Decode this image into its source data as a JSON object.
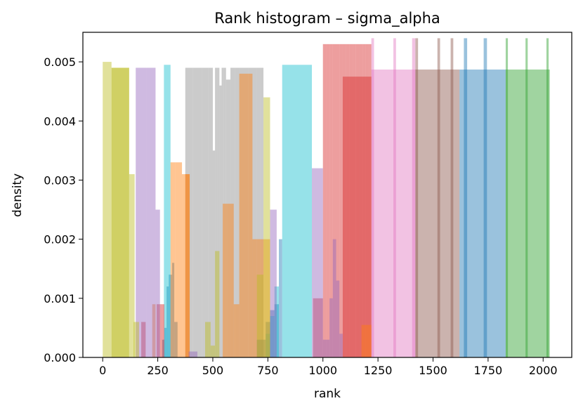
{
  "chart_data": {
    "type": "bar",
    "subtype": "overlaid-histograms",
    "title": "Rank histogram – sigma_alpha",
    "xlabel": "rank",
    "ylabel": "density",
    "xlim": [
      -90,
      2130
    ],
    "ylim": [
      0,
      0.0055
    ],
    "x_ticks": [
      0,
      250,
      500,
      750,
      1000,
      1250,
      1500,
      1750,
      2000
    ],
    "y_ticks": [
      0.0,
      0.001,
      0.002,
      0.003,
      0.004,
      0.005
    ],
    "y_tick_labels": [
      "0.000",
      "0.001",
      "0.002",
      "0.003",
      "0.004",
      "0.005"
    ],
    "grid": false,
    "legend": "none",
    "bar_alpha": 0.45,
    "series": [
      {
        "color": "#8c8c8c",
        "edges": [
          375,
          410,
          450,
          480,
          500,
          510,
          520,
          530,
          540,
          550,
          560,
          580,
          600,
          620,
          660,
          700,
          715,
          730
        ],
        "values": [
          0.0049,
          0.0049,
          0.0049,
          0.0049,
          0.0035,
          0.0049,
          0.0049,
          0.0046,
          0.0049,
          0.0049,
          0.0047,
          0.0049,
          0.0049,
          0.0049,
          0.0049,
          0.0049,
          0.0049
        ]
      },
      {
        "color": "#1f77b4",
        "edges": [
          270,
          280,
          290,
          300,
          315,
          325,
          340
        ],
        "values": [
          0.0003,
          0.0005,
          0.0012,
          0.0014,
          0.0016,
          0.0006
        ]
      },
      {
        "color": "#1f77b4",
        "edges": [
          700,
          720,
          740,
          760,
          780,
          800,
          815
        ],
        "values": [
          0.0003,
          0.0003,
          0.0006,
          0.0008,
          0.0009,
          0.002
        ]
      },
      {
        "color": "#1f77b4",
        "edges": [
          1620,
          1830
        ],
        "values": [
          0.00487
        ]
      },
      {
        "color": "#1f77b4",
        "edges": [
          1640,
          1655,
          1730,
          1745
        ],
        "values": [
          0.0054,
          0.0,
          0.0054
        ]
      },
      {
        "color": "#e377c2",
        "edges": [
          1220,
          1420
        ],
        "values": [
          0.00487
        ]
      },
      {
        "color": "#e377c2",
        "edges": [
          1220,
          1232,
          1320,
          1332,
          1405,
          1420
        ],
        "values": [
          0.0054,
          0.0,
          0.0054,
          0.0,
          0.0054
        ]
      },
      {
        "color": "#8c564b",
        "edges": [
          1420,
          1620
        ],
        "values": [
          0.00487
        ]
      },
      {
        "color": "#8c564b",
        "edges": [
          1420,
          1432,
          1520,
          1532,
          1580,
          1592
        ],
        "values": [
          0.0054,
          0.0,
          0.0054,
          0.0,
          0.0054
        ]
      },
      {
        "color": "#2ca02c",
        "edges": [
          1830,
          2030
        ],
        "values": [
          0.00487
        ]
      },
      {
        "color": "#2ca02c",
        "edges": [
          1830,
          1840,
          1920,
          1930,
          2015,
          2025
        ],
        "values": [
          0.0054,
          0.0,
          0.0054,
          0.0,
          0.0054
        ]
      },
      {
        "color": "#17becf",
        "edges": [
          278,
          308
        ],
        "values": [
          0.00495
        ]
      },
      {
        "color": "#17becf",
        "edges": [
          305,
          315,
          340
        ],
        "values": [
          0.0,
          0.0
        ]
      },
      {
        "color": "#17becf",
        "edges": [
          740,
          760,
          780,
          800
        ],
        "values": [
          0.0004,
          0.0007,
          0.0012
        ]
      },
      {
        "color": "#17becf",
        "edges": [
          815,
          950
        ],
        "values": [
          0.00495
        ]
      },
      {
        "color": "#d62728",
        "edges": [
          175,
          195
        ],
        "values": [
          0.0006
        ]
      },
      {
        "color": "#d62728",
        "edges": [
          245,
          260,
          280
        ],
        "values": [
          0.0009,
          0.0009
        ]
      },
      {
        "color": "#d62728",
        "edges": [
          1000,
          1015,
          1030,
          1045,
          1060,
          1075,
          1090,
          1105,
          1120,
          1135,
          1150,
          1165,
          1180,
          1195,
          1210,
          1220
        ],
        "values": [
          0.0053,
          0.0053,
          0.0053,
          0.0053,
          0.0053,
          0.0053,
          0.0053,
          0.0053,
          0.0053,
          0.0053,
          0.0053,
          0.0053,
          0.0053,
          0.0053,
          0.0053
        ]
      },
      {
        "color": "#d62728",
        "edges": [
          955,
          1000
        ],
        "values": [
          0.001
        ]
      },
      {
        "color": "#d62728",
        "edges": [
          1090,
          1220
        ],
        "values": [
          0.00475
        ]
      },
      {
        "color": "#ff7f0e",
        "edges": [
          225,
          240,
          255
        ],
        "values": [
          0.0009,
          0.0
        ]
      },
      {
        "color": "#ff7f0e",
        "edges": [
          308,
          330,
          360,
          375,
          395,
          420
        ],
        "values": [
          0.0033,
          0.0033,
          0.0031,
          0.0031,
          0.0
        ]
      },
      {
        "color": "#ff7f0e",
        "edges": [
          375,
          395
        ],
        "values": [
          0.0031
        ]
      },
      {
        "color": "#ff7f0e",
        "edges": [
          545,
          565,
          595,
          620,
          660,
          680,
          700,
          730,
          760
        ],
        "values": [
          0.0026,
          0.0026,
          0.0009,
          0.0048,
          0.0048,
          0.002,
          0.002,
          0.002
        ]
      },
      {
        "color": "#ff7f0e",
        "edges": [
          1175,
          1220
        ],
        "values": [
          0.00055
        ]
      },
      {
        "color": "#9467bd",
        "edges": [
          150,
          200,
          240
        ],
        "values": [
          0.0049,
          0.0049
        ]
      },
      {
        "color": "#9467bd",
        "edges": [
          240,
          260
        ],
        "values": [
          0.0025
        ]
      },
      {
        "color": "#9467bd",
        "edges": [
          760,
          790
        ],
        "values": [
          0.0025
        ]
      },
      {
        "color": "#9467bd",
        "edges": [
          390,
          430
        ],
        "values": [
          0.0001
        ]
      },
      {
        "color": "#9467bd",
        "edges": [
          1000,
          1030,
          1045,
          1060,
          1075,
          1090
        ],
        "values": [
          0.0003,
          0.001,
          0.002,
          0.0013,
          0.0004
        ]
      },
      {
        "color": "#9467bd",
        "edges": [
          950,
          1000
        ],
        "values": [
          0.0032
        ]
      },
      {
        "color": "#bcbd22",
        "edges": [
          0,
          40,
          120,
          145,
          165
        ],
        "values": [
          0.005,
          0.0049,
          0.0031,
          0.0
        ]
      },
      {
        "color": "#bcbd22",
        "edges": [
          40,
          120
        ],
        "values": [
          0.0049
        ]
      },
      {
        "color": "#bcbd22",
        "edges": [
          140,
          165
        ],
        "values": [
          0.0006
        ]
      },
      {
        "color": "#bcbd22",
        "edges": [
          465,
          490,
          510,
          530
        ],
        "values": [
          0.0006,
          0.0002,
          0.0018
        ]
      },
      {
        "color": "#bcbd22",
        "edges": [
          700,
          730
        ],
        "values": [
          0.0014
        ]
      },
      {
        "color": "#bcbd22",
        "edges": [
          730,
          760
        ],
        "values": [
          0.0044
        ]
      }
    ]
  }
}
